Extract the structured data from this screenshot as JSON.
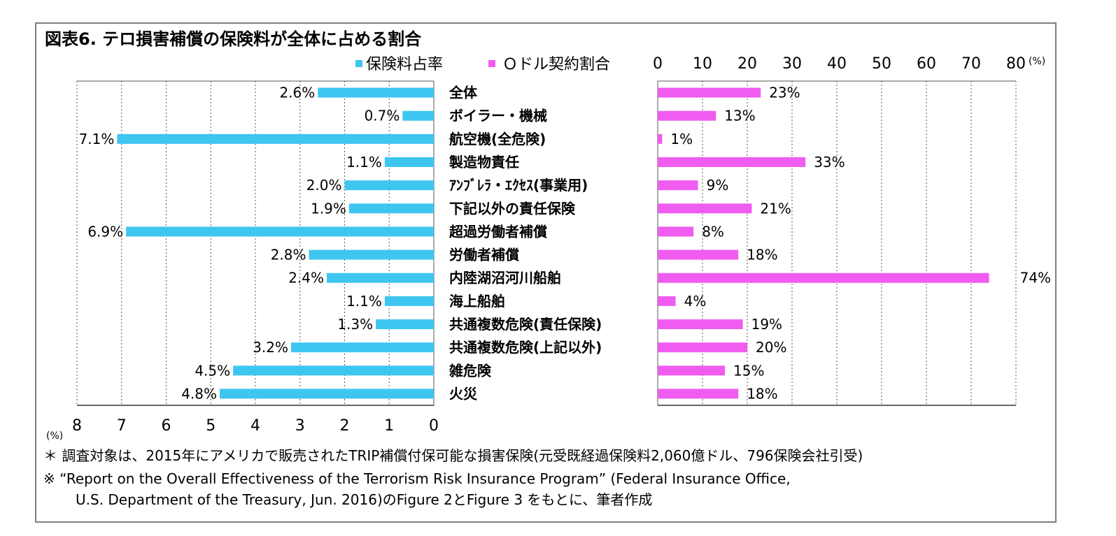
{
  "title": "図表6. テロ損害補償の保険料が全体に占める割合",
  "legend": {
    "series1": "保険料占率",
    "series2": "Ｏドル契約割合"
  },
  "units": {
    "left_unit": "(%)",
    "right_unit": "(%)"
  },
  "colors": {
    "series1": "#3ec6f0",
    "series2": "#f05cf0",
    "border": "#7f7f7f"
  },
  "chart_data": {
    "type": "bar",
    "title": "図表6. テロ損害補償の保険料が全体に占める割合",
    "categories": [
      "全体",
      "ボイラー・機械",
      "航空機(全危険)",
      "製造物責任",
      "ｱﾝﾌﾞﾚﾗ・ｴｸｾｽ(事業用)",
      "下記以外の責任保険",
      "超過労働者補償",
      "労働者補償",
      "内陸湖沼河川船舶",
      "海上船舶",
      "共通複数危険(責任保険)",
      "共通複数危険(上記以外)",
      "雑危険",
      "火災"
    ],
    "series": [
      {
        "name": "保険料占率",
        "values": [
          2.6,
          0.7,
          7.1,
          1.1,
          2.0,
          1.9,
          6.9,
          2.8,
          2.4,
          1.1,
          1.3,
          3.2,
          4.5,
          4.8
        ],
        "labels": [
          "2.6%",
          "0.7%",
          "7.1%",
          "1.1%",
          "2.0%",
          "1.9%",
          "6.9%",
          "2.8%",
          "2.4%",
          "1.1%",
          "1.3%",
          "3.2%",
          "4.5%",
          "4.8%"
        ],
        "axis": "left-reversed",
        "xlim": [
          0,
          8
        ],
        "ticks": [
          "8",
          "7",
          "6",
          "5",
          "4",
          "3",
          "2",
          "1",
          "0"
        ]
      },
      {
        "name": "Ｏドル契約割合",
        "values": [
          23,
          13,
          1,
          33,
          9,
          21,
          8,
          18,
          74,
          4,
          19,
          20,
          15,
          18
        ],
        "labels": [
          "23%",
          "13%",
          "1%",
          "33%",
          "9%",
          "21%",
          "8%",
          "18%",
          "74%",
          "4%",
          "19%",
          "20%",
          "15%",
          "18%"
        ],
        "axis": "right",
        "xlim": [
          0,
          80
        ],
        "ticks": [
          "0",
          "10",
          "20",
          "30",
          "40",
          "50",
          "60",
          "70",
          "80"
        ]
      }
    ],
    "grid": true,
    "legend_position": "top"
  },
  "notes": {
    "note1": "＊ 調査対象は、2015年にアメリカで販売されたTRIP補償付保可能な損害保険(元受既経過保険料2,060億ドル、796保険会社引受)",
    "note2": "※ “Report on the Overall Effectiveness of the Terrorism Risk Insurance Program” (Federal Insurance Office,",
    "note3": "U.S. Department of the Treasury, Jun. 2016)のFigure 2とFigure 3 をもとに、筆者作成"
  }
}
